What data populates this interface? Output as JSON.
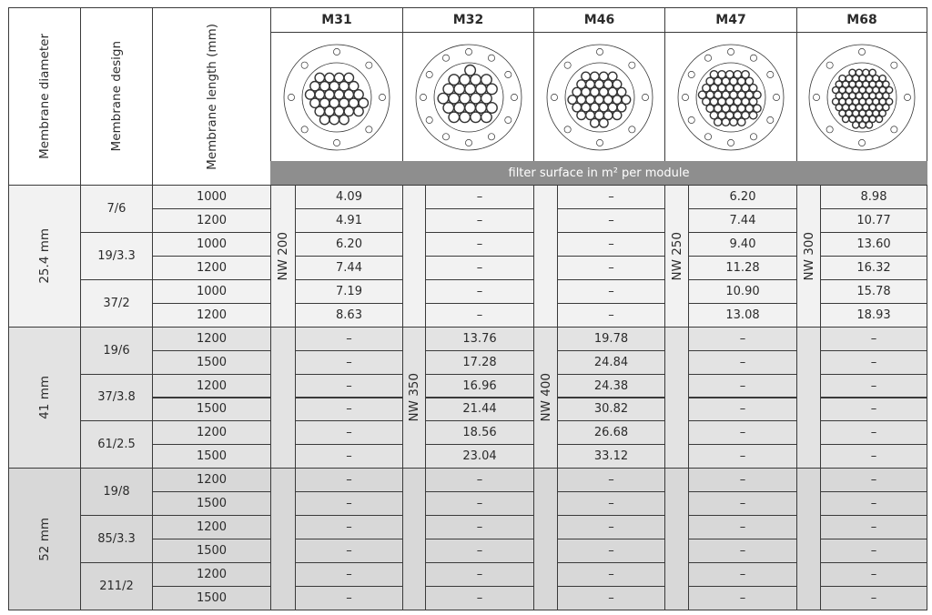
{
  "headers": {
    "diameter": "Membrane diameter",
    "design": "Membrane design",
    "length": "Membrane length (mm)",
    "filter_surface": "filter surface in m² per module"
  },
  "modules": [
    {
      "name": "M31",
      "nw": "NW 200",
      "nw_group": 0
    },
    {
      "name": "M32",
      "nw": "NW 350",
      "nw_group": 1
    },
    {
      "name": "M46",
      "nw": "NW 400",
      "nw_group": 1
    },
    {
      "name": "M47",
      "nw": "NW 250",
      "nw_group": 0
    },
    {
      "name": "M68",
      "nw": "NW 300",
      "nw_group": 0
    }
  ],
  "groups": [
    {
      "diameter": "25.4 mm",
      "designs": [
        {
          "design": "7/6",
          "rows": [
            {
              "length": "1000",
              "values": [
                "4.09",
                "–",
                "–",
                "6.20",
                "8.98"
              ]
            },
            {
              "length": "1200",
              "values": [
                "4.91",
                "–",
                "–",
                "7.44",
                "10.77"
              ]
            }
          ]
        },
        {
          "design": "19/3.3",
          "rows": [
            {
              "length": "1000",
              "values": [
                "6.20",
                "–",
                "–",
                "9.40",
                "13.60"
              ]
            },
            {
              "length": "1200",
              "values": [
                "7.44",
                "–",
                "–",
                "11.28",
                "16.32"
              ]
            }
          ]
        },
        {
          "design": "37/2",
          "rows": [
            {
              "length": "1000",
              "values": [
                "7.19",
                "–",
                "–",
                "10.90",
                "15.78"
              ]
            },
            {
              "length": "1200",
              "values": [
                "8.63",
                "–",
                "–",
                "13.08",
                "18.93"
              ]
            }
          ]
        }
      ]
    },
    {
      "diameter": "41 mm",
      "designs": [
        {
          "design": "19/6",
          "rows": [
            {
              "length": "1200",
              "values": [
                "–",
                "13.76",
                "19.78",
                "–",
                "–"
              ]
            },
            {
              "length": "1500",
              "values": [
                "–",
                "17.28",
                "24.84",
                "–",
                "–"
              ]
            }
          ]
        },
        {
          "design": "37/3.8",
          "rows": [
            {
              "length": "1200",
              "values": [
                "–",
                "16.96",
                "24.38",
                "–",
                "–"
              ]
            },
            {
              "length": "1500",
              "values": [
                "–",
                "21.44",
                "30.82",
                "–",
                "–"
              ]
            }
          ]
        },
        {
          "design": "61/2.5",
          "rows": [
            {
              "length": "1200",
              "values": [
                "–",
                "18.56",
                "26.68",
                "–",
                "–"
              ]
            },
            {
              "length": "1500",
              "values": [
                "–",
                "23.04",
                "33.12",
                "–",
                "–"
              ]
            }
          ]
        }
      ]
    },
    {
      "diameter": "52 mm",
      "designs": [
        {
          "design": "19/8",
          "rows": [
            {
              "length": "1200",
              "values": [
                "–",
                "–",
                "–",
                "–",
                "–"
              ]
            },
            {
              "length": "1500",
              "values": [
                "–",
                "–",
                "–",
                "–",
                "–"
              ]
            }
          ]
        },
        {
          "design": "85/3.3",
          "rows": [
            {
              "length": "1200",
              "values": [
                "–",
                "–",
                "–",
                "–",
                "–"
              ]
            },
            {
              "length": "1500",
              "values": [
                "–",
                "–",
                "–",
                "–",
                "–"
              ]
            }
          ]
        },
        {
          "design": "211/2",
          "rows": [
            {
              "length": "1200",
              "values": [
                "–",
                "–",
                "–",
                "–",
                "–"
              ]
            },
            {
              "length": "1500",
              "values": [
                "–",
                "–",
                "–",
                "–",
                "–"
              ]
            }
          ]
        }
      ]
    }
  ],
  "colors": {
    "group_backgrounds": [
      "#f2f2f2",
      "#e3e3e3",
      "#d8d8d8"
    ],
    "bar": "#8e8e8e",
    "lines": "#3a3a3a"
  }
}
